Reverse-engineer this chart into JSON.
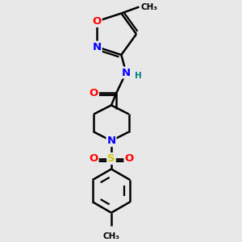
{
  "bg_color": "#e8e8e8",
  "bond_color": "#000000",
  "bond_width": 1.8,
  "atom_colors": {
    "N": "#0000ff",
    "O": "#ff0000",
    "S": "#cccc00",
    "C": "#000000",
    "H": "#008080"
  },
  "fig_width": 3.0,
  "fig_height": 3.0,
  "dpi": 100,
  "xlim": [
    0.6,
    2.4
  ],
  "ylim": [
    0.2,
    3.0
  ]
}
